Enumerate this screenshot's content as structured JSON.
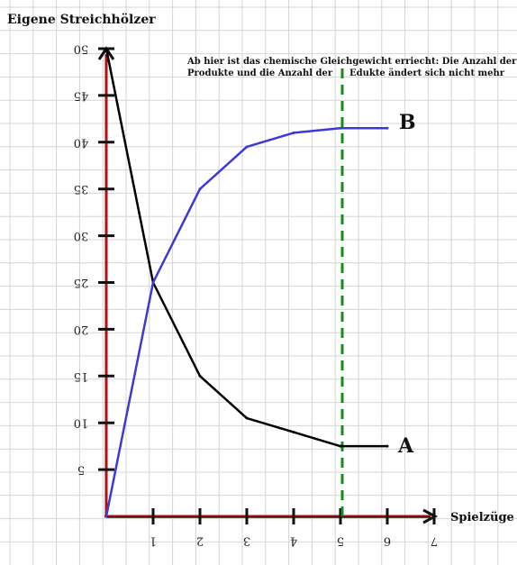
{
  "chart_data": {
    "type": "line",
    "title": "Eigene Streichhölzer",
    "xlabel": "Spielzüge",
    "ylabel": "",
    "x": [
      0,
      1,
      2,
      3,
      4,
      5,
      6
    ],
    "xticks": [
      1,
      2,
      3,
      4,
      5,
      6,
      7
    ],
    "xlim": [
      0,
      7
    ],
    "yticks": [
      5,
      10,
      15,
      20,
      25,
      30,
      35,
      40,
      45,
      50
    ],
    "ylim": [
      0,
      50
    ],
    "grid": true,
    "series": [
      {
        "name": "A",
        "color": "#000000",
        "values": [
          50,
          25,
          15,
          10.5,
          9,
          7.5,
          7.5
        ]
      },
      {
        "name": "B",
        "color": "#3b3bd4",
        "values": [
          0,
          25,
          35,
          39.5,
          41,
          41.5,
          41.5
        ]
      }
    ],
    "annotation": {
      "line1": "Ab hier ist das chemische Gleichgewicht erriecht: Die Anzahl der",
      "line2a": "Produkte und die Anzahl der",
      "line2b": "Edukte ändert sich nicht mehr",
      "x": 5,
      "color": "#1a8a1a"
    },
    "axis_color": "#b01010"
  }
}
